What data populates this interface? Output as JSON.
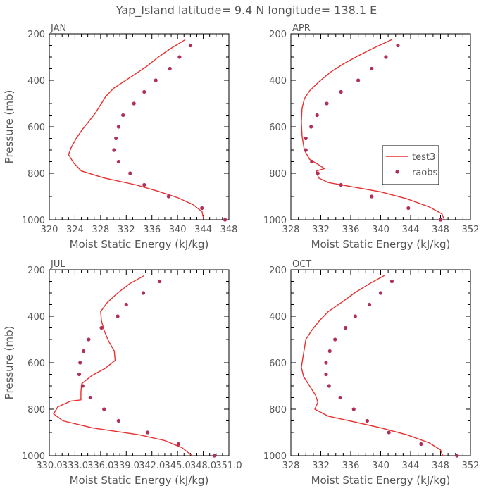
{
  "title": "Yap_Island  latitude= 9.4 N longitude= 138.1 E",
  "colors": {
    "model": "#e8302f",
    "obs": "#b0305a",
    "axis": "#000000",
    "text": "#555555"
  },
  "legend": {
    "model_label": "test3",
    "obs_label": "raobs",
    "panel": "APR",
    "placement": "right"
  },
  "chart_data": [
    {
      "type": "line",
      "panel": "JAN",
      "title": "JAN",
      "xlabel": "Moist Static Energy (kJ/kg)",
      "ylabel": "Pressure (mb)",
      "xlim": [
        320,
        348
      ],
      "ylim": [
        1000,
        200
      ],
      "xticks": [
        320,
        324,
        328,
        332,
        336,
        340,
        344,
        348
      ],
      "xticklabels": [
        "320",
        "324",
        "328",
        "332",
        "336",
        "340",
        "344",
        "348"
      ],
      "yticks": [
        200,
        400,
        600,
        800,
        1000
      ],
      "series": [
        {
          "name": "test3",
          "kind": "line",
          "points": [
            [
              341.2,
              225
            ],
            [
              339,
              262
            ],
            [
              337,
              300
            ],
            [
              335.2,
              340
            ],
            [
              333.3,
              375
            ],
            [
              331.5,
              408
            ],
            [
              330,
              435
            ],
            [
              328.8,
              470
            ],
            [
              328,
              505
            ],
            [
              327.2,
              540
            ],
            [
              326.3,
              572
            ],
            [
              325.2,
              610
            ],
            [
              324.2,
              650
            ],
            [
              323.4,
              690
            ],
            [
              323,
              720
            ],
            [
              323.8,
              755
            ],
            [
              325,
              790
            ],
            [
              328.5,
              820
            ],
            [
              333.5,
              850
            ],
            [
              337,
              878
            ],
            [
              340,
              905
            ],
            [
              342.4,
              935
            ],
            [
              343.8,
              965
            ],
            [
              344.1,
              1000
            ]
          ]
        },
        {
          "name": "raobs",
          "kind": "scatter",
          "points": [
            [
              342,
              250
            ],
            [
              340.3,
              300
            ],
            [
              338.8,
              350
            ],
            [
              336.6,
              400
            ],
            [
              334.8,
              450
            ],
            [
              333.2,
              500
            ],
            [
              331.5,
              550
            ],
            [
              330.8,
              600
            ],
            [
              330.4,
              650
            ],
            [
              330.1,
              700
            ],
            [
              330.8,
              750
            ],
            [
              332.6,
              800
            ],
            [
              334.8,
              850
            ],
            [
              338.6,
              900
            ],
            [
              343.8,
              950
            ],
            [
              347.4,
              1000
            ]
          ]
        }
      ]
    },
    {
      "type": "line",
      "panel": "APR",
      "title": "APR",
      "xlabel": "Moist Static Energy (kJ/kg)",
      "ylabel": "",
      "xlim": [
        328,
        352
      ],
      "ylim": [
        1000,
        200
      ],
      "xticks": [
        328,
        332,
        336,
        340,
        344,
        348,
        352
      ],
      "xticklabels": [
        "328",
        "332",
        "336",
        "340",
        "344",
        "348",
        "352"
      ],
      "yticks": [
        200,
        400,
        600,
        800,
        1000
      ],
      "series": [
        {
          "name": "test3",
          "kind": "line",
          "points": [
            [
              341.5,
              225
            ],
            [
              339,
              262
            ],
            [
              337,
              295
            ],
            [
              335,
              330
            ],
            [
              333.3,
              365
            ],
            [
              331.8,
              405
            ],
            [
              330.5,
              445
            ],
            [
              329.8,
              480
            ],
            [
              329.5,
              520
            ],
            [
              329.4,
              580
            ],
            [
              329.5,
              640
            ],
            [
              329.8,
              700
            ],
            [
              330.5,
              740
            ],
            [
              331.8,
              765
            ],
            [
              332.5,
              780
            ],
            [
              331.4,
              790
            ],
            [
              331.7,
              820
            ],
            [
              333,
              840
            ],
            [
              336.5,
              860
            ],
            [
              340,
              880
            ],
            [
              343.5,
              910
            ],
            [
              346.5,
              945
            ],
            [
              348.2,
              975
            ],
            [
              348.5,
              1000
            ]
          ]
        },
        {
          "name": "raobs",
          "kind": "scatter",
          "points": [
            [
              342.3,
              250
            ],
            [
              340.7,
              300
            ],
            [
              338.8,
              350
            ],
            [
              337,
              400
            ],
            [
              334.7,
              450
            ],
            [
              332.8,
              500
            ],
            [
              331.5,
              550
            ],
            [
              330.7,
              600
            ],
            [
              330,
              650
            ],
            [
              330,
              700
            ],
            [
              330.8,
              750
            ],
            [
              331.6,
              800
            ],
            [
              334.7,
              850
            ],
            [
              338.8,
              900
            ],
            [
              343.7,
              950
            ],
            [
              348,
              1000
            ]
          ]
        }
      ]
    },
    {
      "type": "line",
      "panel": "JUL",
      "title": "JUL",
      "xlabel": "Moist Static Energy (kJ/kg)",
      "ylabel": "Pressure (mb)",
      "xlim": [
        330.0,
        351.0
      ],
      "ylim": [
        1000,
        200
      ],
      "xticks": [
        330.0,
        333.0,
        336.0,
        339.0,
        342.0,
        345.0,
        348.0,
        351.0
      ],
      "xticklabels": [
        "330.0",
        "333.0",
        "336.0",
        "339.0",
        "342.0",
        "345.0",
        "348.0",
        "351.0"
      ],
      "yticks": [
        200,
        400,
        600,
        800,
        1000
      ],
      "series": [
        {
          "name": "test3",
          "kind": "line",
          "points": [
            [
              341.1,
              225
            ],
            [
              339.4,
              260
            ],
            [
              338,
              300
            ],
            [
              336.8,
              340
            ],
            [
              336,
              380
            ],
            [
              336.1,
              420
            ],
            [
              336.4,
              460
            ],
            [
              336.9,
              505
            ],
            [
              337.6,
              550
            ],
            [
              337.7,
              590
            ],
            [
              336.5,
              625
            ],
            [
              335,
              655
            ],
            [
              333.8,
              690
            ],
            [
              333.7,
              725
            ],
            [
              333.7,
              760
            ],
            [
              332.5,
              765
            ],
            [
              331,
              790
            ],
            [
              330.5,
              820
            ],
            [
              331.6,
              850
            ],
            [
              335,
              880
            ],
            [
              340.5,
              910
            ],
            [
              343.5,
              935
            ],
            [
              345.5,
              965
            ],
            [
              346.7,
              1000
            ]
          ]
        },
        {
          "name": "raobs",
          "kind": "scatter",
          "points": [
            [
              342.9,
              250
            ],
            [
              341,
              300
            ],
            [
              339,
              350
            ],
            [
              338,
              400
            ],
            [
              336.1,
              450
            ],
            [
              334.6,
              500
            ],
            [
              334,
              550
            ],
            [
              333.6,
              600
            ],
            [
              333.5,
              650
            ],
            [
              333.9,
              700
            ],
            [
              334.8,
              750
            ],
            [
              336.4,
              800
            ],
            [
              338.1,
              850
            ],
            [
              341.5,
              900
            ],
            [
              345.1,
              950
            ],
            [
              349.3,
              1000
            ]
          ]
        }
      ]
    },
    {
      "type": "line",
      "panel": "OCT",
      "title": "OCT",
      "xlabel": "Moist Static Energy (kJ/kg)",
      "ylabel": "",
      "xlim": [
        328,
        352
      ],
      "ylim": [
        1000,
        200
      ],
      "xticks": [
        328,
        332,
        336,
        340,
        344,
        348,
        352
      ],
      "xticklabels": [
        "328",
        "332",
        "336",
        "340",
        "344",
        "348",
        "352"
      ],
      "yticks": [
        200,
        400,
        600,
        800,
        1000
      ],
      "series": [
        {
          "name": "test3",
          "kind": "line",
          "points": [
            [
              340.5,
              225
            ],
            [
              338.5,
              260
            ],
            [
              336.5,
              300
            ],
            [
              334.8,
              340
            ],
            [
              333,
              380
            ],
            [
              331.8,
              420
            ],
            [
              330.8,
              460
            ],
            [
              330,
              500
            ],
            [
              329.8,
              540
            ],
            [
              329.6,
              580
            ],
            [
              329.4,
              620
            ],
            [
              329.7,
              660
            ],
            [
              330.5,
              700
            ],
            [
              331.3,
              740
            ],
            [
              331.6,
              770
            ],
            [
              331.2,
              800
            ],
            [
              333,
              830
            ],
            [
              336.5,
              855
            ],
            [
              340,
              880
            ],
            [
              343.5,
              910
            ],
            [
              346.5,
              945
            ],
            [
              348,
              975
            ],
            [
              348.3,
              1000
            ]
          ]
        },
        {
          "name": "raobs",
          "kind": "scatter",
          "points": [
            [
              341.5,
              250
            ],
            [
              340,
              300
            ],
            [
              338.5,
              350
            ],
            [
              336.6,
              400
            ],
            [
              335.3,
              450
            ],
            [
              333.9,
              500
            ],
            [
              333.2,
              550
            ],
            [
              332.7,
              600
            ],
            [
              332.7,
              650
            ],
            [
              333.1,
              700
            ],
            [
              334.6,
              750
            ],
            [
              336.4,
              800
            ],
            [
              338.2,
              850
            ],
            [
              341.1,
              900
            ],
            [
              345.4,
              950
            ],
            [
              350.2,
              1000
            ]
          ]
        }
      ]
    }
  ]
}
